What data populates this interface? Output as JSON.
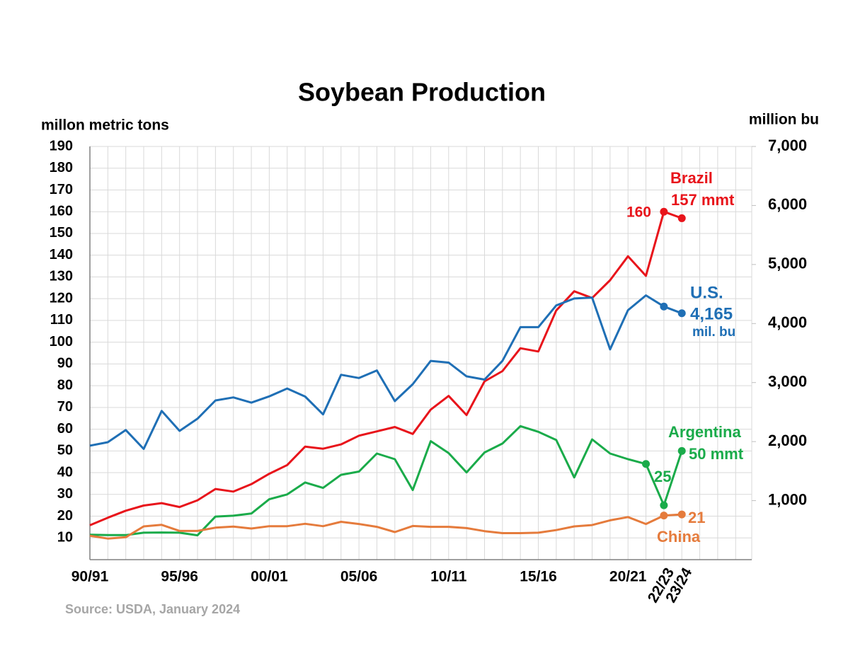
{
  "chart_data": {
    "type": "line",
    "title": "Soybean Production",
    "y_label": "millon metric tons",
    "y2_label": "million bu",
    "source": "Source: USDA, January 2024",
    "categories": [
      "90/91",
      null,
      null,
      null,
      null,
      "95/96",
      null,
      null,
      null,
      null,
      "00/01",
      null,
      null,
      null,
      null,
      "05/06",
      null,
      null,
      null,
      null,
      "10/11",
      null,
      null,
      null,
      null,
      "15/16",
      null,
      null,
      null,
      null,
      "20/21",
      null,
      "22/23",
      "23/24"
    ],
    "ylim": [
      0,
      190
    ],
    "yticks": [
      10,
      20,
      30,
      40,
      50,
      60,
      70,
      80,
      90,
      100,
      110,
      120,
      130,
      140,
      150,
      160,
      170,
      180,
      190
    ],
    "y2lim": [
      0,
      7000
    ],
    "y2ticks": [
      {
        "value": 1000,
        "label": "1,000"
      },
      {
        "value": 2000,
        "label": "2,000"
      },
      {
        "value": 3000,
        "label": "3,000"
      },
      {
        "value": 4000,
        "label": "4,000"
      },
      {
        "value": 5000,
        "label": "5,000"
      },
      {
        "value": 6000,
        "label": "6,000"
      },
      {
        "value": 7000,
        "label": "7,000"
      }
    ],
    "grid": true,
    "series": [
      {
        "name": "Brazil",
        "color": "#e8141b",
        "markers": [
          32,
          33
        ],
        "values": [
          15.8,
          19.3,
          22.5,
          24.9,
          26,
          24.2,
          27.3,
          32.5,
          31.3,
          34.7,
          39.5,
          43.5,
          52,
          51,
          53,
          57,
          59,
          61,
          57.8,
          69,
          75.3,
          66.5,
          82,
          86.7,
          97.2,
          95.7,
          114.6,
          123.4,
          120.3,
          128.5,
          139.5,
          130.5,
          160,
          157
        ]
      },
      {
        "name": "U.S.",
        "color": "#1f6fb5",
        "markers": [
          32,
          33
        ],
        "values": [
          52.4,
          54,
          59.6,
          50.9,
          68.4,
          59.2,
          64.8,
          73.2,
          74.6,
          72.2,
          75.1,
          78.7,
          75,
          66.8,
          85,
          83.5,
          87,
          72.9,
          80.7,
          91.4,
          90.6,
          84.3,
          82.8,
          91.4,
          106.9,
          106.9,
          116.9,
          120.1,
          120.5,
          96.7,
          114.7,
          121.5,
          116.4,
          113.3
        ]
      },
      {
        "name": "Argentina",
        "color": "#1aab4a",
        "markers": [
          31,
          32,
          33
        ],
        "values": [
          11.5,
          11.3,
          11.3,
          12.4,
          12.5,
          12.4,
          11.2,
          19.8,
          20.2,
          21.2,
          27.8,
          30,
          35.5,
          33,
          39,
          40.5,
          48.8,
          46.2,
          32,
          54.5,
          49,
          40.1,
          49.3,
          53.4,
          61.4,
          58.8,
          55,
          37.8,
          55.3,
          48.8,
          46.2,
          44,
          25,
          50
        ]
      },
      {
        "name": "China",
        "color": "#e57b3c",
        "markers": [
          32,
          33
        ],
        "values": [
          11,
          9.7,
          10.3,
          15.3,
          16,
          13.2,
          13.2,
          14.7,
          15.2,
          14.3,
          15.4,
          15.4,
          16.5,
          15.4,
          17.4,
          16.4,
          15.1,
          12.7,
          15.5,
          15.1,
          15.1,
          14.5,
          13.1,
          12.2,
          12.2,
          12.4,
          13.6,
          15.3,
          15.9,
          18.1,
          19.6,
          16.4,
          20.3,
          20.8
        ]
      }
    ],
    "annotations": [
      {
        "text": "157 mmt",
        "color": "#e8141b"
      },
      {
        "text": "160",
        "color": "#e8141b"
      },
      {
        "text": "4,165",
        "color": "#1f6fb5"
      },
      {
        "text": "mil. bu",
        "color": "#1f6fb5"
      },
      {
        "text": "50 mmt",
        "color": "#1aab4a"
      },
      {
        "text": "25",
        "color": "#1aab4a"
      },
      {
        "text": "21",
        "color": "#e57b3c"
      }
    ]
  }
}
